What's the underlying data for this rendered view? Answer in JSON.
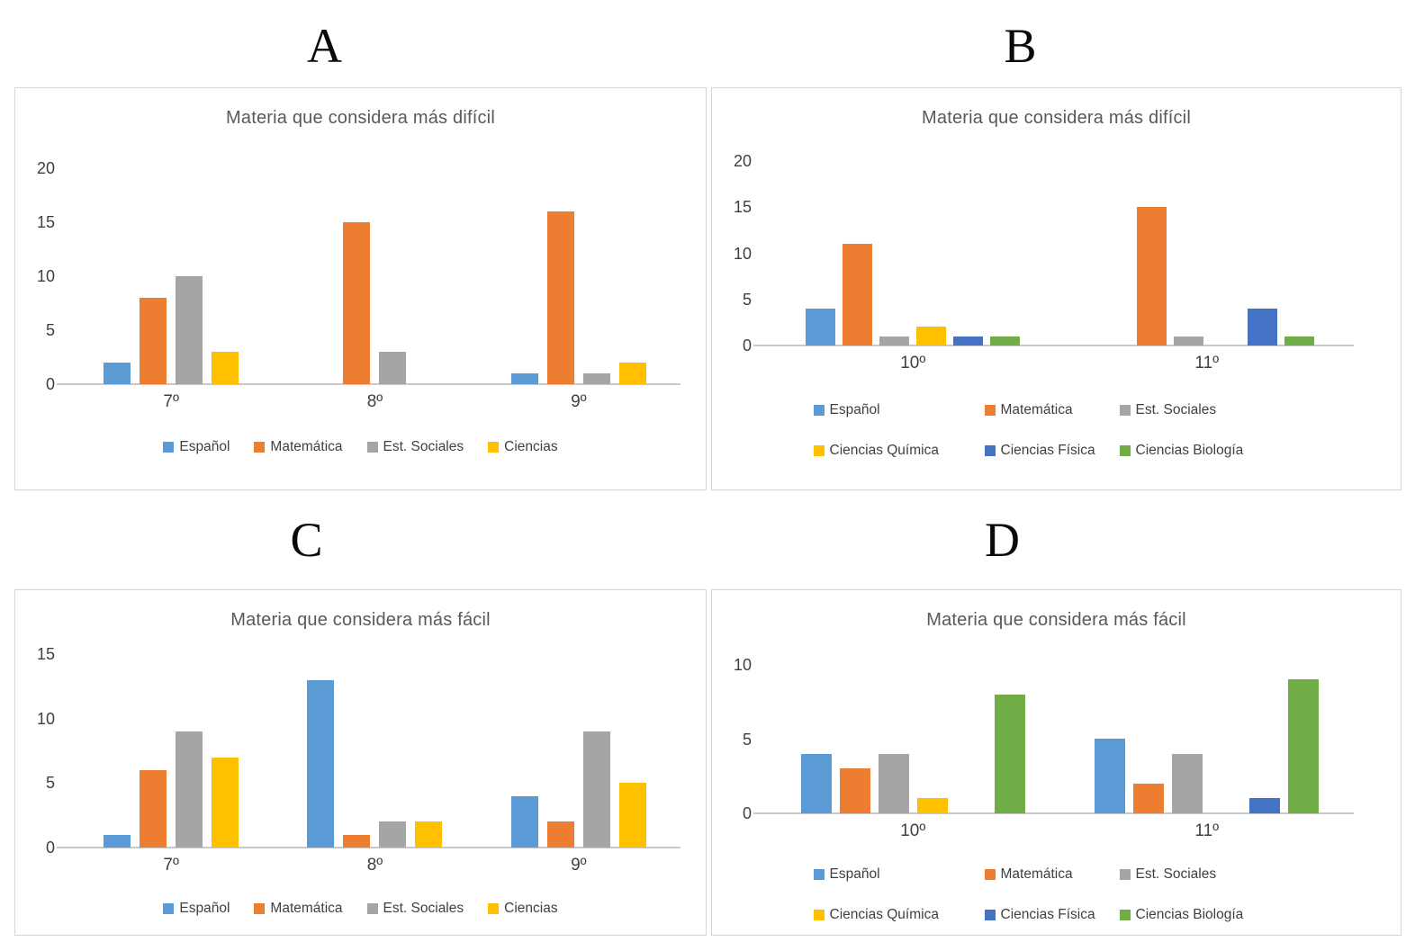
{
  "panel_labels": [
    "A",
    "B",
    "C",
    "D"
  ],
  "palette": {
    "espanol": "#5B9BD5",
    "matematica": "#ED7D31",
    "est_sociales": "#A5A5A5",
    "ciencias": "#FFC000",
    "ciencias_quimica": "#FFC000",
    "ciencias_fisica": "#4472C4",
    "ciencias_biologia": "#70AD47"
  },
  "chart_data": [
    {
      "type": "bar",
      "title": "Materia que considera más difícil",
      "categories": [
        "7º",
        "8º",
        "9º"
      ],
      "series": [
        {
          "name": "Español",
          "color": "#5B9BD5",
          "values": [
            2,
            0,
            1
          ]
        },
        {
          "name": "Matemática",
          "color": "#ED7D31",
          "values": [
            8,
            15,
            16
          ]
        },
        {
          "name": "Est. Sociales",
          "color": "#A5A5A5",
          "values": [
            10,
            3,
            1
          ]
        },
        {
          "name": "Ciencias",
          "color": "#FFC000",
          "values": [
            3,
            0,
            2
          ]
        }
      ],
      "ylim": [
        0,
        20
      ],
      "yticks": [
        0,
        5,
        10,
        15,
        20
      ],
      "grid": false,
      "legend_position": "bottom"
    },
    {
      "type": "bar",
      "title": "Materia que considera más difícil",
      "categories": [
        "10º",
        "11º"
      ],
      "series": [
        {
          "name": "Español",
          "color": "#5B9BD5",
          "values": [
            4,
            0
          ]
        },
        {
          "name": "Matemática",
          "color": "#ED7D31",
          "values": [
            11,
            15
          ]
        },
        {
          "name": "Est. Sociales",
          "color": "#A5A5A5",
          "values": [
            1,
            1
          ]
        },
        {
          "name": "Ciencias Química",
          "color": "#FFC000",
          "values": [
            2,
            0
          ]
        },
        {
          "name": "Ciencias Física",
          "color": "#4472C4",
          "values": [
            1,
            4
          ]
        },
        {
          "name": "Ciencias Biología",
          "color": "#70AD47",
          "values": [
            1,
            1
          ]
        }
      ],
      "ylim": [
        0,
        20
      ],
      "yticks": [
        0,
        5,
        10,
        15,
        20
      ],
      "grid": false,
      "legend_position": "bottom"
    },
    {
      "type": "bar",
      "title": "Materia que considera más fácil",
      "categories": [
        "7º",
        "8º",
        "9º"
      ],
      "series": [
        {
          "name": "Español",
          "color": "#5B9BD5",
          "values": [
            1,
            13,
            4
          ]
        },
        {
          "name": "Matemática",
          "color": "#ED7D31",
          "values": [
            6,
            1,
            2
          ]
        },
        {
          "name": "Est. Sociales",
          "color": "#A5A5A5",
          "values": [
            9,
            2,
            9
          ]
        },
        {
          "name": "Ciencias",
          "color": "#FFC000",
          "values": [
            7,
            2,
            5
          ]
        }
      ],
      "ylim": [
        0,
        15
      ],
      "yticks": [
        0,
        5,
        10,
        15
      ],
      "grid": false,
      "legend_position": "bottom"
    },
    {
      "type": "bar",
      "title": "Materia que considera más fácil",
      "categories": [
        "10º",
        "11º"
      ],
      "series": [
        {
          "name": "Español",
          "color": "#5B9BD5",
          "values": [
            4,
            5
          ]
        },
        {
          "name": "Matemática",
          "color": "#ED7D31",
          "values": [
            3,
            2
          ]
        },
        {
          "name": "Est. Sociales",
          "color": "#A5A5A5",
          "values": [
            4,
            4
          ]
        },
        {
          "name": "Ciencias Química",
          "color": "#FFC000",
          "values": [
            1,
            0
          ]
        },
        {
          "name": "Ciencias Física",
          "color": "#4472C4",
          "values": [
            0,
            1
          ]
        },
        {
          "name": "Ciencias Biología",
          "color": "#70AD47",
          "values": [
            8,
            9
          ]
        }
      ],
      "ylim": [
        0,
        10
      ],
      "yticks": [
        0,
        5,
        10
      ],
      "grid": false,
      "legend_position": "bottom"
    }
  ]
}
